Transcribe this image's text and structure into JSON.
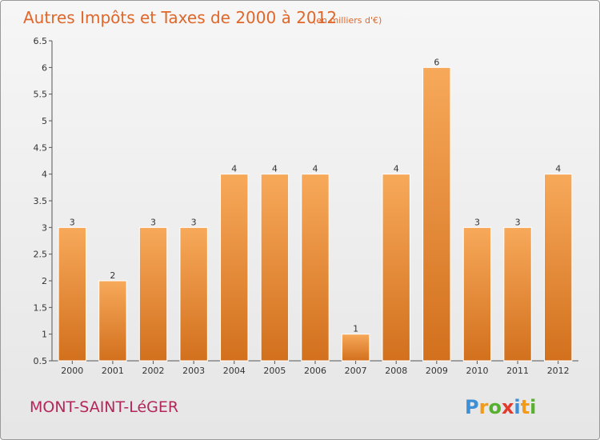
{
  "title": "Autres Impôts et Taxes de 2000 à 2012",
  "subtitle": "(en milliers d'€)",
  "commune": "MONT-SAINT-LéGER",
  "logo": {
    "letters": [
      "P",
      "r",
      "o",
      "x",
      "i",
      "t",
      "i"
    ],
    "colors": [
      "#3d8fd6",
      "#f29a1a",
      "#58b030",
      "#e23a2d",
      "#3d8fd6",
      "#f29a1a",
      "#58b030"
    ]
  },
  "colors": {
    "bar_top": "#f7a95a",
    "bar_bottom": "#d2701d",
    "title": "#e0672a",
    "commune": "#b4265a"
  },
  "chart_data": {
    "type": "bar",
    "title": "Autres Impôts et Taxes de 2000 à 2012",
    "subtitle": "(en milliers d'€)",
    "categories": [
      "2000",
      "2001",
      "2002",
      "2003",
      "2004",
      "2005",
      "2006",
      "2007",
      "2008",
      "2009",
      "2010",
      "2011",
      "2012"
    ],
    "values": [
      3,
      2,
      3,
      3,
      4,
      4,
      4,
      1,
      4,
      6,
      3,
      3,
      4
    ],
    "ylim": [
      0.5,
      6.5
    ],
    "yticks": [
      "0.5",
      "1",
      "1.5",
      "2",
      "2.5",
      "3",
      "3.5",
      "4",
      "4.5",
      "5",
      "5.5",
      "6",
      "6.5"
    ],
    "grid": false,
    "xlabel": "",
    "ylabel": ""
  }
}
